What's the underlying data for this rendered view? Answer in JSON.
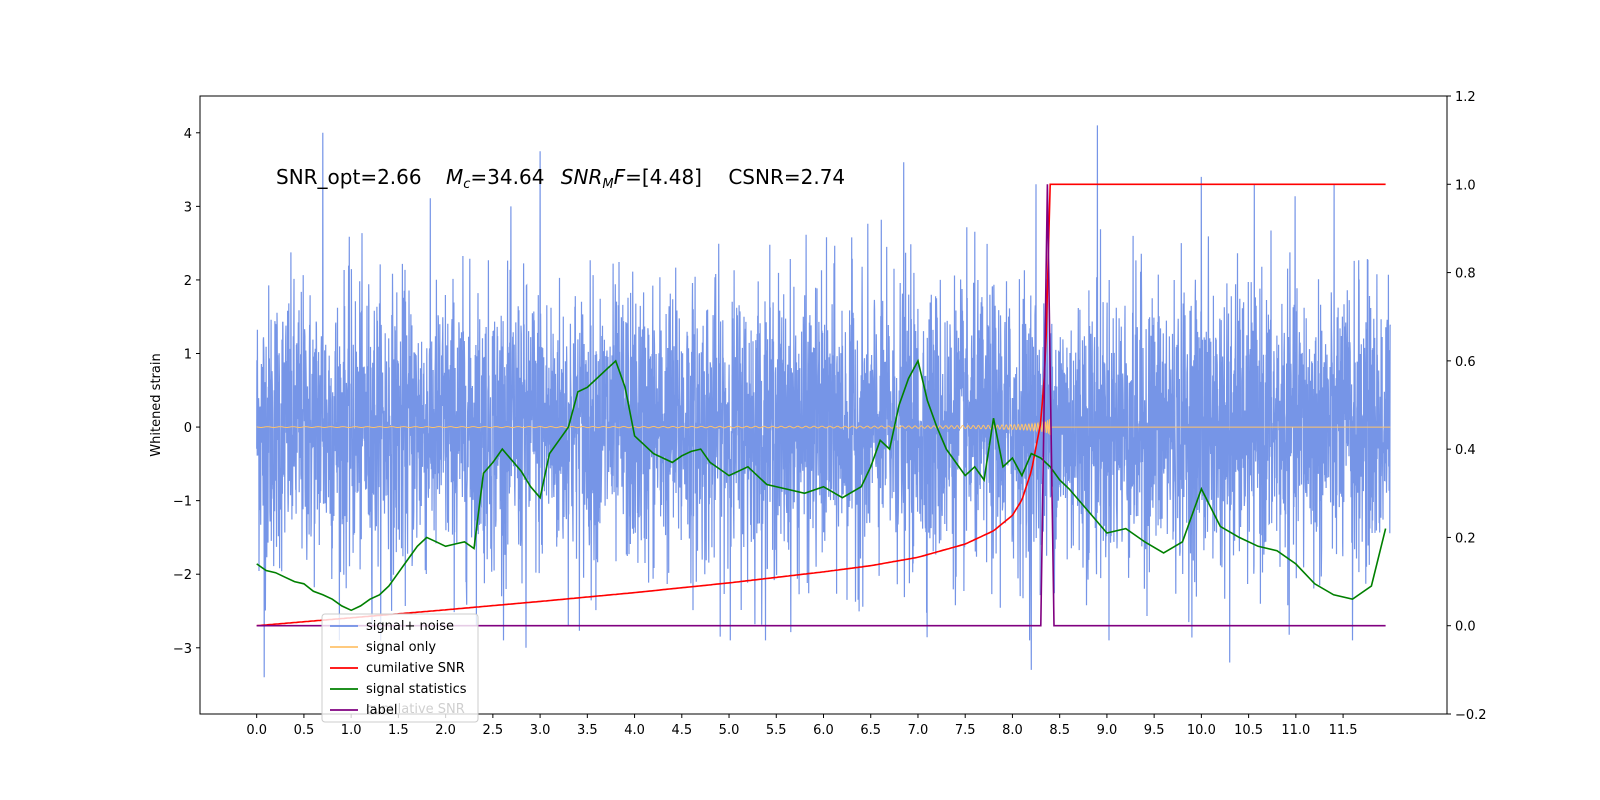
{
  "chart_data": {
    "type": "line",
    "ylabel": "Whitened strain",
    "xlim": [
      -0.6,
      12.6
    ],
    "ylim": [
      -3.9,
      4.5
    ],
    "y2lim": [
      -0.2,
      1.2
    ],
    "x_ticks": [
      0.0,
      0.5,
      1.0,
      1.5,
      2.0,
      2.5,
      3.0,
      3.5,
      4.0,
      4.5,
      5.0,
      5.5,
      6.0,
      6.5,
      7.0,
      7.5,
      8.0,
      8.5,
      9.0,
      9.5,
      10.0,
      10.5,
      11.0,
      11.5
    ],
    "x_tick_labels": [
      "0.0",
      "0.5",
      "1.0",
      "1.5",
      "2.0",
      "2.5",
      "3.0",
      "3.5",
      "4.0",
      "4.5",
      "5.0",
      "5.5",
      "6.0",
      "6.5",
      "7.0",
      "7.5",
      "8.0",
      "8.5",
      "9.0",
      "9.5",
      "10.0",
      "10.5",
      "11.0",
      "11.5"
    ],
    "y_ticks": [
      -3,
      -2,
      -1,
      0,
      1,
      2,
      3,
      4
    ],
    "y_tick_labels": [
      "−3",
      "−2",
      "−1",
      "0",
      "1",
      "2",
      "3",
      "4"
    ],
    "y2_ticks": [
      -0.2,
      0.0,
      0.2,
      0.4,
      0.6,
      0.8,
      1.0,
      1.2
    ],
    "y2_tick_labels": [
      "−0.2",
      "0.0",
      "0.2",
      "0.4",
      "0.6",
      "0.8",
      "1.0",
      "1.2"
    ],
    "annotation": {
      "snr_opt": "SNR_opt=2.66",
      "mc_value": "=34.64",
      "snrmf_value": "=[4.48]",
      "csnr": "CSNR=2.74"
    },
    "legend": {
      "placement": "lower-left",
      "entries": [
        {
          "label": "signal+ noise",
          "color": "#6f8fe6"
        },
        {
          "label": "signal only",
          "color": "#ffc36b"
        },
        {
          "label": "cumilative SNR",
          "color": "#ff0000"
        },
        {
          "label": "signal statistics",
          "color": "#008000"
        },
        {
          "label": "label",
          "color": "#800080"
        }
      ],
      "hidden_label": "cumilative SNR"
    },
    "series": [
      {
        "name": "signal+ noise",
        "axis": "left",
        "color": "#6f8fe6",
        "x_range": [
          0.0,
          12.0
        ],
        "y_band": [
          -2.3,
          2.3
        ],
        "peaks": [
          {
            "x": 0.08,
            "y": -3.4
          },
          {
            "x": 0.7,
            "y": 4.0
          },
          {
            "x": 2.85,
            "y": -3.0
          },
          {
            "x": 3.0,
            "y": 3.75
          },
          {
            "x": 6.85,
            "y": 3.6
          },
          {
            "x": 8.2,
            "y": -3.3
          },
          {
            "x": 8.25,
            "y": 3.3
          },
          {
            "x": 8.9,
            "y": 4.1
          },
          {
            "x": 10.0,
            "y": 3.4
          },
          {
            "x": 10.3,
            "y": -3.2
          },
          {
            "x": 11.6,
            "y": -2.9
          }
        ]
      },
      {
        "name": "signal only",
        "axis": "left",
        "color": "#ffc36b",
        "chirp_end": 8.4,
        "max_amplitude": 0.25
      },
      {
        "name": "cumilative SNR",
        "axis": "right",
        "color": "#ff0000",
        "x": [
          0.0,
          1.0,
          2.0,
          3.0,
          4.0,
          5.0,
          6.0,
          6.5,
          7.0,
          7.5,
          7.8,
          8.0,
          8.1,
          8.2,
          8.3,
          8.35,
          8.4,
          9.0,
          10.0,
          11.0,
          11.95
        ],
        "values": [
          0.0,
          0.018,
          0.036,
          0.055,
          0.075,
          0.097,
          0.122,
          0.136,
          0.155,
          0.185,
          0.215,
          0.25,
          0.285,
          0.35,
          0.46,
          0.6,
          1.0,
          1.0,
          1.0,
          1.0,
          1.0
        ]
      },
      {
        "name": "signal statistics",
        "axis": "right",
        "color": "#008000",
        "x": [
          0.0,
          0.1,
          0.2,
          0.3,
          0.4,
          0.5,
          0.6,
          0.7,
          0.8,
          0.9,
          1.0,
          1.1,
          1.2,
          1.3,
          1.4,
          1.5,
          1.6,
          1.7,
          1.8,
          1.9,
          2.0,
          2.1,
          2.2,
          2.3,
          2.4,
          2.5,
          2.6,
          2.7,
          2.8,
          2.9,
          3.0,
          3.1,
          3.2,
          3.3,
          3.4,
          3.5,
          3.6,
          3.7,
          3.8,
          3.9,
          4.0,
          4.1,
          4.2,
          4.3,
          4.4,
          4.5,
          4.6,
          4.7,
          4.8,
          4.9,
          5.0,
          5.2,
          5.4,
          5.6,
          5.8,
          6.0,
          6.2,
          6.4,
          6.5,
          6.6,
          6.7,
          6.8,
          6.9,
          7.0,
          7.1,
          7.2,
          7.3,
          7.4,
          7.5,
          7.6,
          7.7,
          7.8,
          7.9,
          8.0,
          8.1,
          8.2,
          8.3,
          8.4,
          8.5,
          8.6,
          8.8,
          9.0,
          9.2,
          9.4,
          9.6,
          9.8,
          10.0,
          10.2,
          10.4,
          10.6,
          10.8,
          11.0,
          11.2,
          11.4,
          11.6,
          11.8,
          11.95
        ],
        "values": [
          0.14,
          0.125,
          0.12,
          0.11,
          0.1,
          0.095,
          0.078,
          0.07,
          0.06,
          0.045,
          0.035,
          0.045,
          0.06,
          0.07,
          0.09,
          0.12,
          0.15,
          0.18,
          0.2,
          0.19,
          0.18,
          0.185,
          0.19,
          0.175,
          0.345,
          0.37,
          0.4,
          0.375,
          0.35,
          0.315,
          0.29,
          0.39,
          0.42,
          0.45,
          0.53,
          0.54,
          0.56,
          0.58,
          0.6,
          0.54,
          0.43,
          0.41,
          0.39,
          0.38,
          0.37,
          0.385,
          0.395,
          0.4,
          0.37,
          0.355,
          0.34,
          0.36,
          0.32,
          0.31,
          0.3,
          0.315,
          0.29,
          0.315,
          0.36,
          0.42,
          0.4,
          0.5,
          0.56,
          0.6,
          0.51,
          0.45,
          0.4,
          0.37,
          0.34,
          0.36,
          0.33,
          0.47,
          0.36,
          0.38,
          0.34,
          0.39,
          0.38,
          0.36,
          0.33,
          0.31,
          0.26,
          0.21,
          0.22,
          0.19,
          0.165,
          0.19,
          0.31,
          0.225,
          0.2,
          0.18,
          0.17,
          0.14,
          0.095,
          0.07,
          0.06,
          0.09,
          0.22
        ]
      },
      {
        "name": "label",
        "axis": "right",
        "color": "#800080",
        "x": [
          0.0,
          8.3,
          8.37,
          8.44,
          11.95
        ],
        "values": [
          0.0,
          0.0,
          1.0,
          0.0,
          0.0
        ]
      }
    ]
  }
}
